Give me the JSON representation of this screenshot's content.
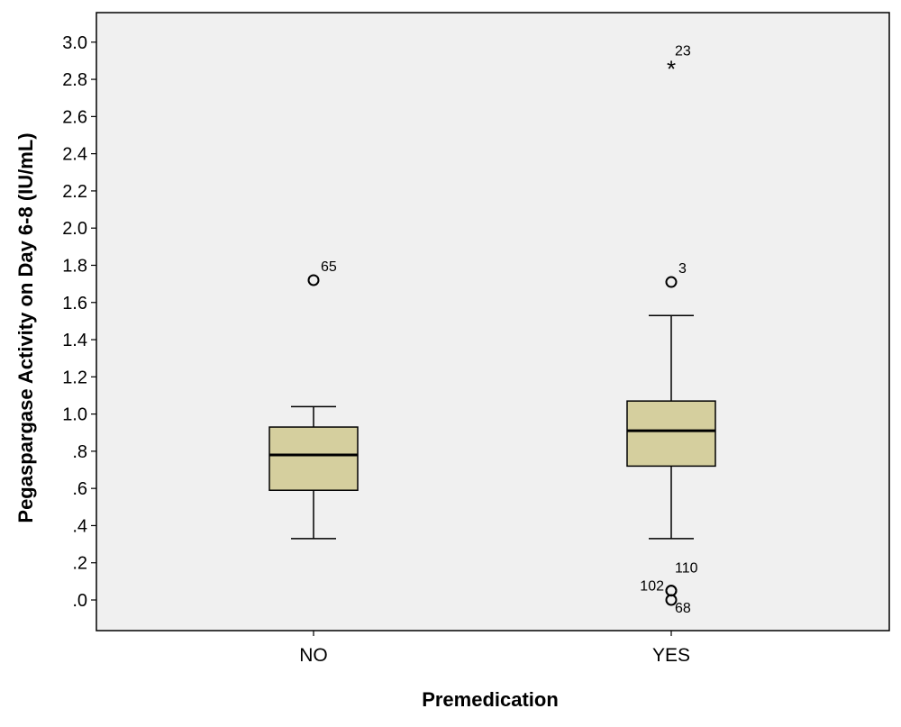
{
  "chart_data": {
    "type": "boxplot",
    "title": "",
    "xlabel": "Premedication",
    "ylabel": "Pegaspargase Activity on Day 6-8 (IU/mL)",
    "ylim": [
      -0.17,
      3.18
    ],
    "y_ticks": [
      0.0,
      0.2,
      0.4,
      0.6,
      0.8,
      1.0,
      1.2,
      1.4,
      1.6,
      1.8,
      2.0,
      2.2,
      2.4,
      2.6,
      2.8,
      3.0
    ],
    "y_tick_labels": [
      ".0",
      ".2",
      ".4",
      ".6",
      ".8",
      "1.0",
      "1.2",
      "1.4",
      "1.6",
      "1.8",
      "2.0",
      "2.2",
      "2.4",
      "2.6",
      "2.8",
      "3.0"
    ],
    "grid": false,
    "categories": [
      "NO",
      "YES"
    ],
    "boxes": [
      {
        "category": "NO",
        "whisker_low": 0.33,
        "q1": 0.59,
        "median": 0.78,
        "q3": 0.93,
        "whisker_high": 1.04,
        "outliers": [
          {
            "value": 1.72,
            "label": "65",
            "marker": "circle",
            "label_side": "right"
          }
        ]
      },
      {
        "category": "YES",
        "whisker_low": 0.33,
        "q1": 0.72,
        "median": 0.91,
        "q3": 1.07,
        "whisker_high": 1.53,
        "outliers": [
          {
            "value": 2.87,
            "label": "23",
            "marker": "star",
            "label_side": "right"
          },
          {
            "value": 1.71,
            "label": "3",
            "marker": "circle",
            "label_side": "right"
          },
          {
            "value": 0.05,
            "label": "110",
            "marker": "circle",
            "label_side": "upper-right"
          },
          {
            "value": 0.05,
            "label": "102",
            "marker": "circle",
            "label_side": "left"
          },
          {
            "value": 0.0,
            "label": "68",
            "marker": "circle",
            "label_side": "lower-right"
          }
        ]
      }
    ],
    "colors": {
      "box_fill": "#d5cf9e",
      "plot_background": "#f0f0f0",
      "stroke": "#000000"
    }
  }
}
